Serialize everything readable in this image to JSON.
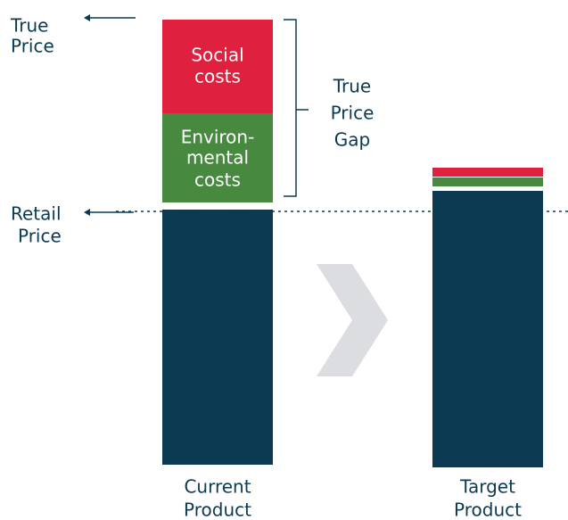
{
  "markers": {
    "true_price": [
      "True",
      "Price"
    ],
    "retail_price": [
      "Retail",
      "Price"
    ]
  },
  "segments": {
    "social": [
      "Social",
      "costs"
    ],
    "environmental": [
      "Environ-",
      "mental",
      "costs"
    ]
  },
  "gap_label": [
    "True",
    "Price",
    "Gap"
  ],
  "products": {
    "current": [
      "Current",
      "Product"
    ],
    "target": [
      "Target",
      "Product"
    ]
  }
}
